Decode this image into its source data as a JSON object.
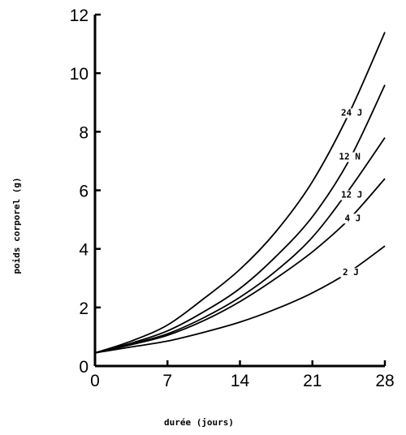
{
  "chart_data": {
    "type": "line",
    "title": "",
    "xlabel": "durée  (jours)",
    "ylabel": "poids  corporel (g)",
    "xlim": [
      0,
      28
    ],
    "ylim": [
      0,
      12
    ],
    "xticks": [
      0,
      7,
      14,
      21,
      28
    ],
    "yticks": [
      0,
      2,
      4,
      6,
      8,
      10,
      12
    ],
    "xtick_labels": [
      "0",
      "7",
      "14",
      "21",
      "28"
    ],
    "ytick_labels": [
      "0",
      "2",
      "4",
      "6",
      "8",
      "10",
      "12"
    ],
    "grid": false,
    "legend": "inline labels on curves",
    "series": [
      {
        "name": "24 J",
        "x": [
          0,
          3.5,
          7,
          10.5,
          14,
          17.5,
          21,
          24.5,
          28
        ],
        "y": [
          0.45,
          0.85,
          1.4,
          2.3,
          3.3,
          4.6,
          6.3,
          8.6,
          11.4
        ]
      },
      {
        "name": "12 N",
        "x": [
          0,
          3.5,
          7,
          10.5,
          14,
          17.5,
          21,
          24.5,
          28
        ],
        "y": [
          0.45,
          0.78,
          1.2,
          1.85,
          2.65,
          3.75,
          5.1,
          7.0,
          9.6
        ]
      },
      {
        "name": "12 J",
        "x": [
          0,
          3.5,
          7,
          10.5,
          14,
          17.5,
          21,
          24.5,
          28
        ],
        "y": [
          0.45,
          0.75,
          1.1,
          1.65,
          2.35,
          3.25,
          4.4,
          6.0,
          7.8
        ]
      },
      {
        "name": "4 J",
        "x": [
          0,
          3.5,
          7,
          10.5,
          14,
          17.5,
          21,
          24.5,
          28
        ],
        "y": [
          0.45,
          0.73,
          1.05,
          1.55,
          2.2,
          3.0,
          3.9,
          5.0,
          6.4
        ]
      },
      {
        "name": "2 J",
        "x": [
          0,
          3.5,
          7,
          10.5,
          14,
          17.5,
          21,
          24.5,
          28
        ],
        "y": [
          0.45,
          0.65,
          0.85,
          1.15,
          1.5,
          1.95,
          2.5,
          3.2,
          4.1
        ]
      }
    ],
    "series_label_positions": [
      {
        "name": "24 J",
        "x": 24.8,
        "y": 8.55
      },
      {
        "name": "12 N",
        "x": 24.6,
        "y": 7.05
      },
      {
        "name": "12 J",
        "x": 24.8,
        "y": 5.75
      },
      {
        "name": "4 J",
        "x": 24.9,
        "y": 4.95
      },
      {
        "name": "2 J",
        "x": 24.7,
        "y": 3.1
      }
    ]
  }
}
